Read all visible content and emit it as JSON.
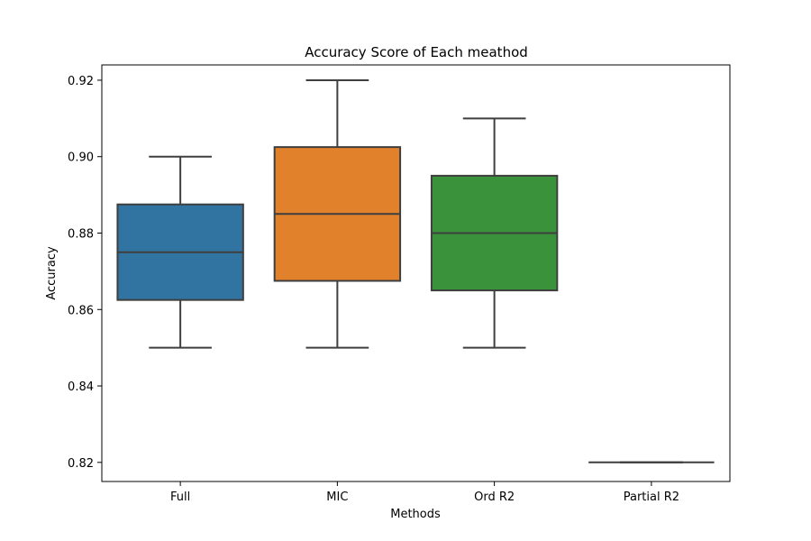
{
  "chart_data": {
    "type": "box",
    "title": "Accuracy Score of Each meathod",
    "xlabel": "Methods",
    "ylabel": "Accuracy",
    "ylim": [
      0.815,
      0.924
    ],
    "y_ticks": [
      "0.82",
      "0.84",
      "0.86",
      "0.88",
      "0.90",
      "0.92"
    ],
    "y_tick_values": [
      0.82,
      0.84,
      0.86,
      0.88,
      0.9,
      0.92
    ],
    "categories": [
      "Full",
      "MIC",
      "Ord R2",
      "Partial R2"
    ],
    "boxes": [
      {
        "category": "Full",
        "whisker_low": 0.85,
        "q1": 0.8625,
        "median": 0.875,
        "q3": 0.8875,
        "whisker_high": 0.9,
        "color": "#3274a1"
      },
      {
        "category": "MIC",
        "whisker_low": 0.85,
        "q1": 0.8675,
        "median": 0.885,
        "q3": 0.9025,
        "whisker_high": 0.92,
        "color": "#e1812c"
      },
      {
        "category": "Ord R2",
        "whisker_low": 0.85,
        "q1": 0.865,
        "median": 0.88,
        "q3": 0.895,
        "whisker_high": 0.91,
        "color": "#3a923a"
      },
      {
        "category": "Partial R2",
        "whisker_low": 0.82,
        "q1": 0.82,
        "median": 0.82,
        "q3": 0.82,
        "whisker_high": 0.82,
        "color": "#c03d3e"
      }
    ],
    "grid": false,
    "legend": "none"
  }
}
